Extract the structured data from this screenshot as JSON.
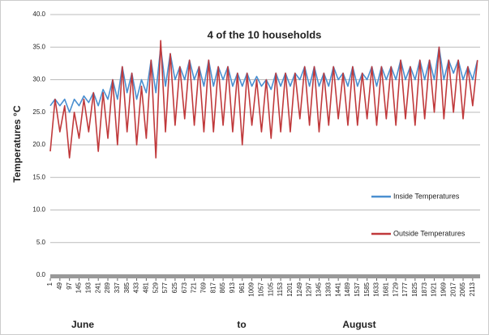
{
  "chart_data": {
    "type": "line",
    "title": "4 of the 10 households",
    "ylabel": "Temperatures °C",
    "bottom_labels": [
      "June",
      "to",
      "August"
    ],
    "xlim": [
      1,
      2150
    ],
    "ylim": [
      0,
      40
    ],
    "yticks": [
      {
        "value": 0,
        "label": "0.0"
      },
      {
        "value": 5,
        "label": "5.0"
      },
      {
        "value": 10,
        "label": "10.0"
      },
      {
        "value": 15,
        "label": "15.0"
      },
      {
        "value": 20,
        "label": "20.0"
      },
      {
        "value": 25,
        "label": "25.0"
      },
      {
        "value": 30,
        "label": "30.0"
      },
      {
        "value": 35,
        "label": "35.0"
      },
      {
        "value": 40,
        "label": "40.0"
      }
    ],
    "xticks": [
      1,
      49,
      97,
      145,
      193,
      241,
      289,
      337,
      385,
      433,
      481,
      529,
      577,
      625,
      673,
      721,
      769,
      817,
      865,
      913,
      961,
      1009,
      1057,
      1105,
      1153,
      1201,
      1249,
      1297,
      1345,
      1393,
      1441,
      1489,
      1537,
      1585,
      1633,
      1681,
      1729,
      1777,
      1825,
      1873,
      1921,
      1969,
      2017,
      2065,
      2113
    ],
    "grid": true,
    "x": [
      1,
      25,
      49,
      73,
      97,
      121,
      145,
      169,
      193,
      217,
      241,
      265,
      289,
      313,
      337,
      361,
      385,
      409,
      433,
      457,
      481,
      505,
      529,
      553,
      577,
      601,
      625,
      649,
      673,
      697,
      721,
      745,
      769,
      793,
      817,
      841,
      865,
      889,
      913,
      937,
      961,
      985,
      1009,
      1033,
      1057,
      1081,
      1105,
      1129,
      1153,
      1177,
      1201,
      1225,
      1249,
      1273,
      1297,
      1321,
      1345,
      1369,
      1393,
      1417,
      1441,
      1465,
      1489,
      1513,
      1537,
      1561,
      1585,
      1609,
      1633,
      1657,
      1681,
      1705,
      1729,
      1753,
      1777,
      1801,
      1825,
      1849,
      1873,
      1897,
      1921,
      1945,
      1969,
      1993,
      2017,
      2041,
      2065,
      2089,
      2113,
      2137
    ],
    "series": [
      {
        "name": "Inside Temperatures",
        "color": "#4a8fd0",
        "values": [
          26,
          27,
          26,
          27,
          25,
          27,
          26,
          27.5,
          26.5,
          28,
          26,
          28.5,
          27,
          30,
          27,
          32,
          28,
          31,
          27,
          30,
          28,
          33,
          28,
          35,
          29,
          34,
          30,
          32,
          30,
          33,
          30,
          32,
          29,
          33,
          29,
          32,
          30,
          32,
          29,
          31,
          29,
          31,
          29,
          30.5,
          29,
          30,
          28.5,
          31,
          29,
          31,
          29,
          31,
          30,
          32,
          29,
          32,
          29,
          31,
          29,
          32,
          30,
          31,
          29,
          32,
          29,
          31,
          30,
          32,
          29,
          32,
          30,
          32,
          30,
          33,
          30,
          32,
          30,
          33,
          30,
          33,
          30,
          35,
          30,
          33,
          31,
          33,
          30,
          32,
          30,
          33
        ]
      },
      {
        "name": "Outside Temperatures",
        "color": "#c0393b",
        "values": [
          19,
          27,
          22,
          26,
          18,
          25,
          21,
          27,
          22,
          28,
          19,
          28,
          21,
          30,
          20,
          32,
          22,
          31,
          20,
          29,
          21,
          33,
          18,
          36,
          22,
          34,
          23,
          32,
          24,
          33,
          23,
          32,
          22,
          33,
          22,
          32,
          23,
          32,
          22,
          31,
          20,
          31,
          23,
          30,
          22,
          30,
          21,
          31,
          22,
          31,
          22,
          31,
          24,
          32,
          23,
          32,
          22,
          31,
          23,
          32,
          24,
          31,
          23,
          32,
          23,
          31,
          24,
          32,
          23,
          32,
          24,
          32,
          23,
          33,
          24,
          32,
          23,
          33,
          24,
          33,
          25,
          35,
          24,
          33,
          25,
          33,
          24,
          32,
          26,
          33
        ]
      }
    ]
  }
}
